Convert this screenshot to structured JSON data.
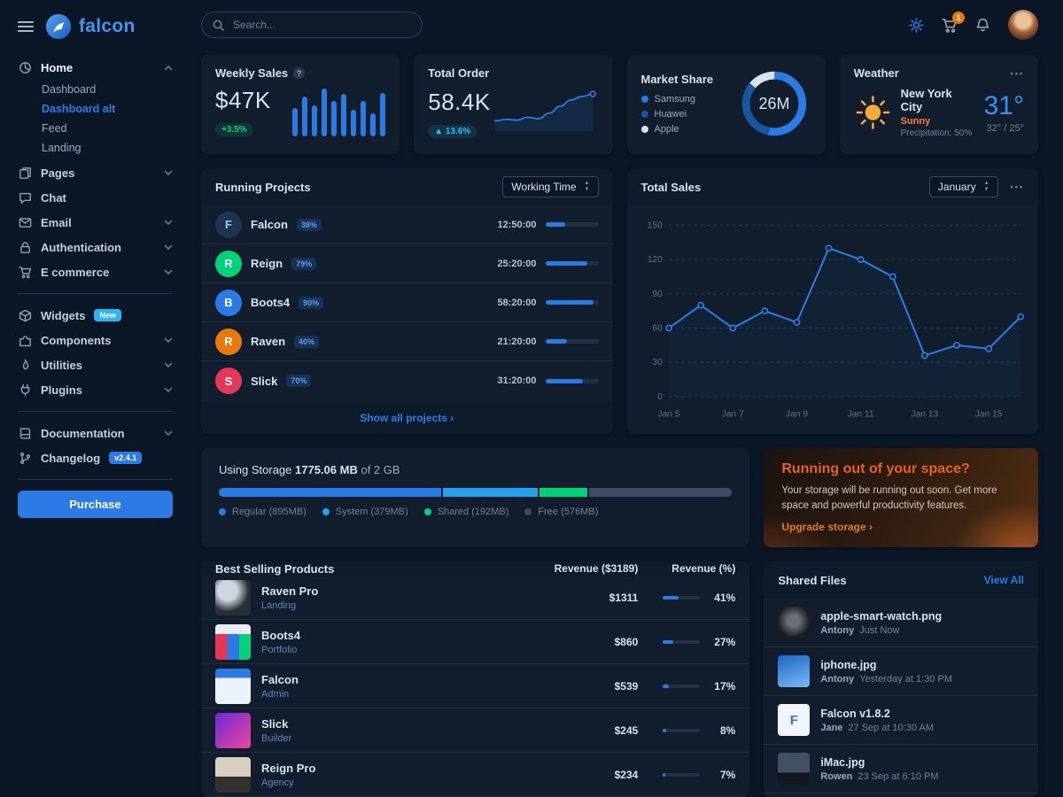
{
  "brand": {
    "name": "falcon"
  },
  "topbar": {
    "search_placeholder": "Search...",
    "cart_badge": "1"
  },
  "sidebar": {
    "purchase_label": "Purchase",
    "sections": [
      {
        "items": [
          {
            "icon": "chart-pie-icon",
            "label": "Home",
            "chevron": "up",
            "active": true,
            "children": [
              {
                "label": "Dashboard"
              },
              {
                "label": "Dashboard alt",
                "active": true
              },
              {
                "label": "Feed"
              },
              {
                "label": "Landing"
              }
            ]
          },
          {
            "icon": "pages-icon",
            "label": "Pages",
            "chevron": "down"
          },
          {
            "icon": "chat-icon",
            "label": "Chat"
          },
          {
            "icon": "email-icon",
            "label": "Email",
            "chevron": "down"
          },
          {
            "icon": "lock-icon",
            "label": "Authentication",
            "chevron": "down"
          },
          {
            "icon": "cart-icon",
            "label": "E commerce",
            "chevron": "down"
          }
        ]
      },
      {
        "items": [
          {
            "icon": "widgets-icon",
            "label": "Widgets",
            "badge": {
              "text": "New",
              "color": "cyan"
            }
          },
          {
            "icon": "components-icon",
            "label": "Components",
            "chevron": "down"
          },
          {
            "icon": "utilities-icon",
            "label": "Utilities",
            "chevron": "down"
          },
          {
            "icon": "plugins-icon",
            "label": "Plugins",
            "chevron": "down"
          }
        ]
      },
      {
        "items": [
          {
            "icon": "documentation-icon",
            "label": "Documentation",
            "chevron": "down"
          },
          {
            "icon": "changelog-icon",
            "label": "Changelog",
            "badge": {
              "text": "v2.4.1",
              "color": "blue"
            }
          }
        ]
      }
    ]
  },
  "weekly_sales": {
    "title": "Weekly Sales",
    "value": "$47K",
    "badge": "+3.5%",
    "chart_data": {
      "type": "bar",
      "values": [
        45,
        62,
        48,
        75,
        55,
        66,
        42,
        55,
        36,
        68
      ]
    }
  },
  "total_order": {
    "title": "Total Order",
    "value": "58.4K",
    "badge": "▲ 13.6%",
    "chart_data": {
      "type": "line",
      "values": [
        18,
        22,
        20,
        28,
        24,
        40,
        60,
        78,
        88,
        95
      ]
    }
  },
  "market_share": {
    "title": "Market Share",
    "center_label": "26M",
    "chart_data": {
      "type": "donut",
      "series": [
        {
          "name": "Samsung",
          "value": 53,
          "color": "#2c7be5"
        },
        {
          "name": "Huawei",
          "value": 33,
          "color": "#1956a0"
        },
        {
          "name": "Apple",
          "value": 14,
          "color": "#d8e2ef"
        }
      ]
    }
  },
  "weather": {
    "title": "Weather",
    "city": "New York City",
    "condition": "Sunny",
    "precipitation": "Precipitation: 50%",
    "temp": "31°",
    "range": "32° / 25°"
  },
  "running_projects": {
    "title": "Running Projects",
    "select_value": "Working Time",
    "footer": "Show all projects",
    "rows": [
      {
        "initial": "F",
        "name": "Falcon",
        "badge": "38%",
        "time": "12:50:00",
        "progress": 38,
        "avatar_color": "navy"
      },
      {
        "initial": "R",
        "name": "Reign",
        "badge": "79%",
        "time": "25:20:00",
        "progress": 79,
        "avatar_color": "green"
      },
      {
        "initial": "B",
        "name": "Boots4",
        "badge": "90%",
        "time": "58:20:00",
        "progress": 90,
        "avatar_color": "blue"
      },
      {
        "initial": "R",
        "name": "Raven",
        "badge": "40%",
        "time": "21:20:00",
        "progress": 40,
        "avatar_color": "orange"
      },
      {
        "initial": "S",
        "name": "Slick",
        "badge": "70%",
        "time": "31:20:00",
        "progress": 70,
        "avatar_color": "red"
      }
    ]
  },
  "total_sales": {
    "title": "Total Sales",
    "select_value": "January",
    "chart_data": {
      "type": "line",
      "x": [
        "Jan 5",
        "Jan 6",
        "Jan 7",
        "Jan 8",
        "Jan 9",
        "Jan 10",
        "Jan 11",
        "Jan 12",
        "Jan 13",
        "Jan 14",
        "Jan 15",
        "Jan 16"
      ],
      "values": [
        60,
        80,
        60,
        75,
        65,
        130,
        120,
        105,
        36,
        45,
        42,
        70
      ],
      "yticks": [
        0,
        30,
        60,
        90,
        120,
        150
      ],
      "xtick_labels": [
        "Jan 5",
        "Jan 7",
        "Jan 9",
        "Jan 11",
        "Jan 13",
        "Jan 15"
      ],
      "ylim": [
        0,
        150
      ]
    }
  },
  "storage": {
    "prefix": "Using Storage",
    "used": "1775.06 MB",
    "suffix": "of 2 GB",
    "segments": [
      {
        "label": "Regular (895MB)",
        "mb": 895,
        "color": "#2c7be5"
      },
      {
        "label": "System (379MB)",
        "mb": 379,
        "color": "#24a0ed"
      },
      {
        "label": "Shared (192MB)",
        "mb": 192,
        "color": "#00d27a"
      },
      {
        "label": "Free (576MB)",
        "mb": 576,
        "color": "#3e4d63"
      }
    ]
  },
  "space": {
    "title": "Running out of your space?",
    "body": "Your storage will be running out soon. Get more space and powerful productivity features.",
    "link": "Upgrade storage"
  },
  "best_selling": {
    "title": "Best Selling Products",
    "col_revenue": "Revenue ($3189)",
    "col_percent": "Revenue (%)",
    "rows": [
      {
        "name": "Raven Pro",
        "category": "Landing",
        "revenue": "$1311",
        "percent": 41,
        "thumb": "raven"
      },
      {
        "name": "Boots4",
        "category": "Portfolio",
        "revenue": "$860",
        "percent": 27,
        "thumb": "boots4"
      },
      {
        "name": "Falcon",
        "category": "Admin",
        "revenue": "$539",
        "percent": 17,
        "thumb": "falcon"
      },
      {
        "name": "Slick",
        "category": "Builder",
        "revenue": "$245",
        "percent": 8,
        "thumb": "slick"
      },
      {
        "name": "Reign Pro",
        "category": "Agency",
        "revenue": "$234",
        "percent": 7,
        "thumb": "reign"
      }
    ]
  },
  "shared_files": {
    "title": "Shared Files",
    "view_all": "View All",
    "files": [
      {
        "name": "apple-smart-watch.png",
        "author": "Antony",
        "time": "Just Now",
        "thumb": "watch"
      },
      {
        "name": "iphone.jpg",
        "author": "Antony",
        "time": "Yesterday at 1:30 PM",
        "thumb": "iphone"
      },
      {
        "name": "Falcon v1.8.2",
        "author": "Jane",
        "time": "27 Sep at 10:30 AM",
        "thumb": "falconfile"
      },
      {
        "name": "iMac.jpg",
        "author": "Rowen",
        "time": "23 Sep at 6:10 PM",
        "thumb": "imac"
      }
    ]
  }
}
